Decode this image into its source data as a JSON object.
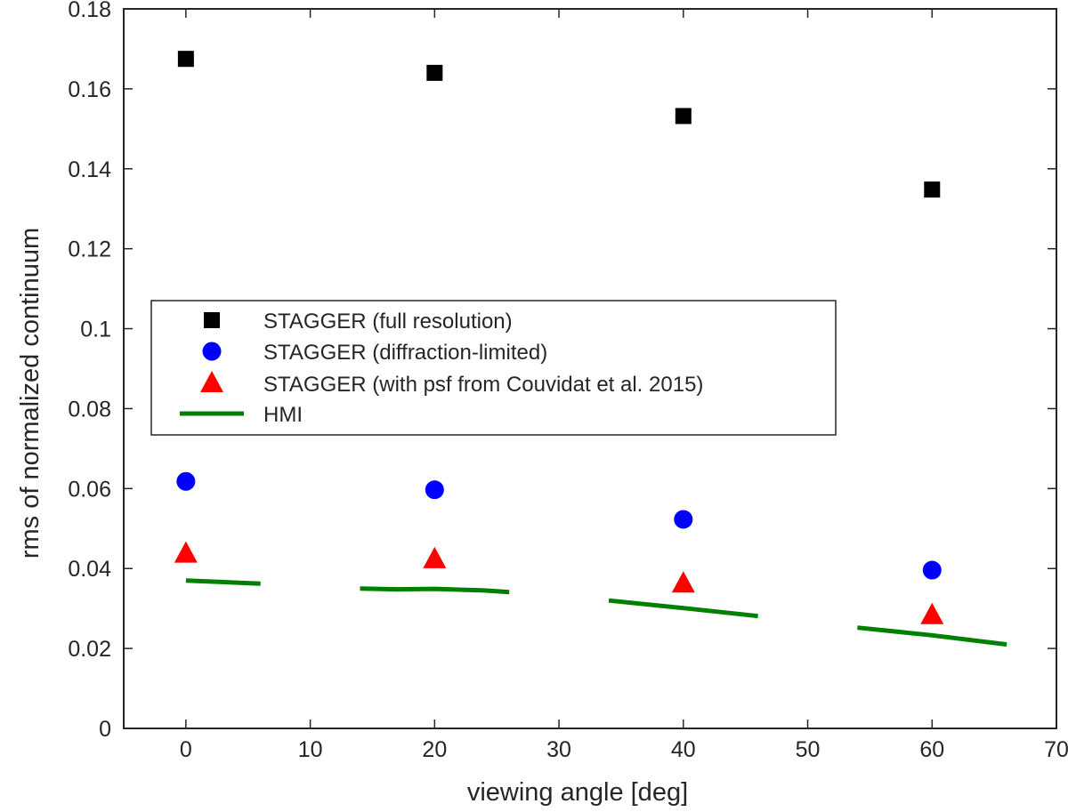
{
  "chart_data": {
    "type": "scatter",
    "title": "",
    "xlabel": "viewing angle [deg]",
    "ylabel": "rms of normalized continuum",
    "xlim": [
      -5,
      70
    ],
    "ylim": [
      0,
      0.18
    ],
    "xticks": [
      "0",
      "10",
      "20",
      "30",
      "40",
      "50",
      "60",
      "70"
    ],
    "xtick_values": [
      0,
      10,
      20,
      30,
      40,
      50,
      60,
      70
    ],
    "yticks": [
      "0",
      "0.02",
      "0.04",
      "0.06",
      "0.08",
      "0.1",
      "0.12",
      "0.14",
      "0.16",
      "0.18"
    ],
    "ytick_values": [
      0,
      0.02,
      0.04,
      0.06,
      0.08,
      0.1,
      0.12,
      0.14,
      0.16,
      0.18
    ],
    "grid": false,
    "legend_position": "center-left",
    "series": [
      {
        "name": "STAGGER (full resolution)",
        "marker": "square",
        "color": "#000000",
        "points": [
          {
            "x": 0,
            "y": 0.1675
          },
          {
            "x": 20,
            "y": 0.164
          },
          {
            "x": 40,
            "y": 0.1532
          },
          {
            "x": 60,
            "y": 0.1348
          }
        ]
      },
      {
        "name": "STAGGER (diffraction-limited)",
        "marker": "circle",
        "color": "#0000ff",
        "points": [
          {
            "x": 0,
            "y": 0.0618
          },
          {
            "x": 20,
            "y": 0.0597
          },
          {
            "x": 40,
            "y": 0.0523
          },
          {
            "x": 60,
            "y": 0.0396
          }
        ]
      },
      {
        "name": "STAGGER (with psf from Couvidat et al. 2015)",
        "marker": "triangle",
        "color": "#ff0000",
        "points": [
          {
            "x": 0,
            "y": 0.0437
          },
          {
            "x": 20,
            "y": 0.0423
          },
          {
            "x": 40,
            "y": 0.0362
          },
          {
            "x": 60,
            "y": 0.0283
          }
        ]
      },
      {
        "name": "HMI",
        "marker": "line",
        "color": "#008000",
        "segments": [
          [
            {
              "x": 0,
              "y": 0.037
            },
            {
              "x": 6,
              "y": 0.0362
            }
          ],
          [
            {
              "x": 14,
              "y": 0.035
            },
            {
              "x": 17,
              "y": 0.0348
            },
            {
              "x": 20,
              "y": 0.0349
            },
            {
              "x": 24,
              "y": 0.0345
            },
            {
              "x": 26,
              "y": 0.0341
            }
          ],
          [
            {
              "x": 34,
              "y": 0.032
            },
            {
              "x": 40,
              "y": 0.0301
            },
            {
              "x": 46,
              "y": 0.0281
            }
          ],
          [
            {
              "x": 54,
              "y": 0.0252
            },
            {
              "x": 60,
              "y": 0.0233
            },
            {
              "x": 66,
              "y": 0.021
            }
          ]
        ]
      }
    ]
  }
}
